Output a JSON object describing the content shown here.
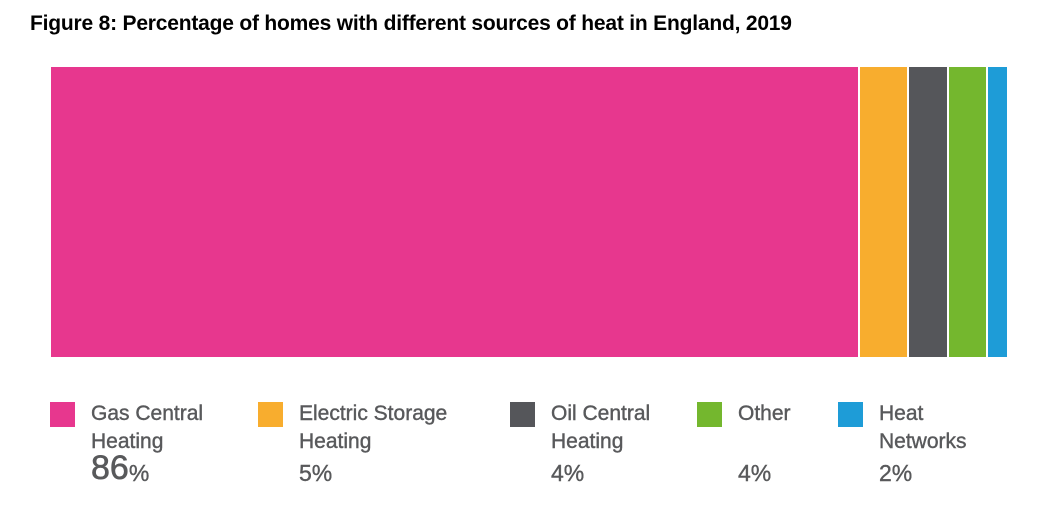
{
  "figure": {
    "title": "Figure 8: Percentage of homes with different sources of heat in England, 2019",
    "title_color": "#000000",
    "background": "#FFFFFF",
    "text_color": "#58595B"
  },
  "chart_data": {
    "type": "bar",
    "variant": "horizontal-stacked-single-bar",
    "title": "Figure 8: Percentage of homes with different sources of heat in England, 2019",
    "unit": "%",
    "total": 100,
    "categories": [
      "Gas Central Heating",
      "Electric Storage Heating",
      "Oil Central Heating",
      "Other",
      "Heat Networks"
    ],
    "values": [
      86,
      5,
      4,
      4,
      2
    ],
    "colors": [
      "#E7378E",
      "#F8AD2E",
      "#55565A",
      "#74B72E",
      "#1E9CD7"
    ],
    "axes": "none",
    "gridlines": false,
    "legend_position": "bottom",
    "segments": [
      {
        "label": "Gas Central Heating",
        "label_wrapped": "Gas Central\nHeating",
        "value": 86,
        "display_value": "86",
        "unit": "%",
        "color": "#E7378E",
        "emphasis": true
      },
      {
        "label": "Electric Storage Heating",
        "label_wrapped": "Electric Storage\nHeating",
        "value": 5,
        "display_value": "5",
        "unit": "%",
        "color": "#F8AD2E",
        "emphasis": false
      },
      {
        "label": "Oil Central Heating",
        "label_wrapped": "Oil Central\nHeating",
        "value": 4,
        "display_value": "4",
        "unit": "%",
        "color": "#55565A",
        "emphasis": false
      },
      {
        "label": "Other",
        "label_wrapped": "Other",
        "value": 4,
        "display_value": "4",
        "unit": "%",
        "color": "#74B72E",
        "emphasis": false
      },
      {
        "label": "Heat Networks",
        "label_wrapped": "Heat\nNetworks",
        "value": 2,
        "display_value": "2",
        "unit": "%",
        "color": "#1E9CD7",
        "emphasis": false
      }
    ]
  }
}
